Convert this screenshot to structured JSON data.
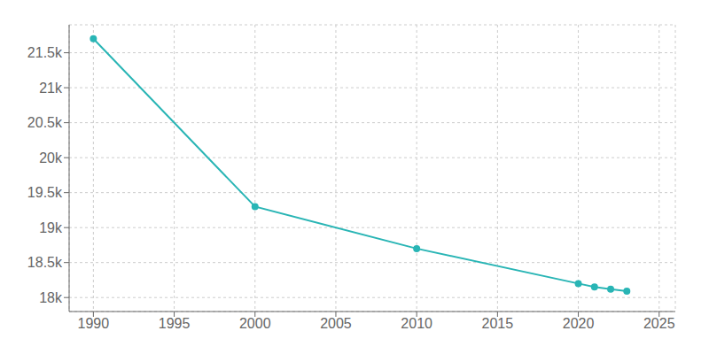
{
  "chart_data": {
    "type": "line",
    "x": [
      1990,
      2000,
      2010,
      2020,
      2021,
      2022,
      2023
    ],
    "values": [
      21700,
      19300,
      18700,
      18200,
      18150,
      18120,
      18090
    ],
    "color": "#29b5b5",
    "marker": "circle",
    "xlim": [
      1988.5,
      2026
    ],
    "ylim": [
      17800,
      21900
    ],
    "xticks": [
      1990,
      1995,
      2000,
      2005,
      2010,
      2015,
      2020,
      2025
    ],
    "yticks": [
      {
        "value": 18000,
        "label": "18k"
      },
      {
        "value": 18500,
        "label": "18.5k"
      },
      {
        "value": 19000,
        "label": "19k"
      },
      {
        "value": 19500,
        "label": "19.5k"
      },
      {
        "value": 20000,
        "label": "20k"
      },
      {
        "value": 20500,
        "label": "20.5k"
      },
      {
        "value": 21000,
        "label": "21k"
      },
      {
        "value": 21500,
        "label": "21.5k"
      }
    ],
    "grid": true
  }
}
